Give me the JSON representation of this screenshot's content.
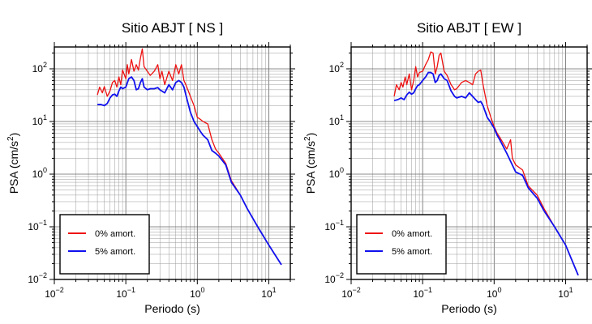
{
  "chart_data": [
    {
      "type": "line",
      "title": "Sitio ABJT [ NS ]",
      "xlabel": "Periodo (s)",
      "ylabel": {
        "base": "PSA (cm/s",
        "sup": "2",
        "end": ")"
      },
      "xscale": "log",
      "yscale": "log",
      "xlim": [
        0.01,
        20
      ],
      "ylim": [
        0.01,
        260
      ],
      "xticks": [
        {
          "base": "10",
          "exp": "−2"
        },
        {
          "base": "10",
          "exp": "−1"
        },
        {
          "base": "10",
          "exp": "0"
        },
        {
          "base": "10",
          "exp": "1"
        }
      ],
      "yticks": [
        {
          "mant": "10",
          "exp": "−2"
        },
        {
          "mant": "10",
          "exp": "−1"
        },
        {
          "mant": "10",
          "exp": "0"
        },
        {
          "mant": "10",
          "exp": "1"
        },
        {
          "mant": "10",
          "exp": "2"
        }
      ],
      "grid": true,
      "legend_position": "bottom-left",
      "series": [
        {
          "name": "0% amort.",
          "color": "#ee1111",
          "x": [
            0.04,
            0.043,
            0.047,
            0.05,
            0.055,
            0.06,
            0.065,
            0.07,
            0.075,
            0.08,
            0.085,
            0.09,
            0.1,
            0.105,
            0.11,
            0.12,
            0.13,
            0.14,
            0.15,
            0.16,
            0.17,
            0.18,
            0.2,
            0.22,
            0.25,
            0.28,
            0.3,
            0.32,
            0.35,
            0.4,
            0.45,
            0.5,
            0.55,
            0.6,
            0.65,
            0.7,
            0.8,
            0.9,
            1.0,
            1.1,
            1.2,
            1.4,
            1.6,
            1.8,
            2.0,
            2.5,
            3.0,
            4.0,
            5.0,
            7.0,
            10.0,
            15.0
          ],
          "y": [
            32,
            45,
            35,
            46,
            30,
            38,
            55,
            60,
            45,
            70,
            50,
            95,
            65,
            120,
            80,
            150,
            90,
            120,
            95,
            160,
            240,
            110,
            90,
            75,
            90,
            120,
            65,
            90,
            50,
            90,
            60,
            120,
            80,
            120,
            60,
            48,
            30,
            20,
            12,
            11,
            10,
            9,
            4.5,
            3.0,
            2.5,
            1.6,
            0.75,
            0.4,
            0.22,
            0.1,
            0.045,
            0.019
          ]
        },
        {
          "name": "5% amort.",
          "color": "#1111ee",
          "x": [
            0.04,
            0.045,
            0.05,
            0.055,
            0.06,
            0.065,
            0.07,
            0.075,
            0.08,
            0.085,
            0.09,
            0.1,
            0.11,
            0.12,
            0.13,
            0.14,
            0.15,
            0.16,
            0.17,
            0.18,
            0.2,
            0.22,
            0.25,
            0.28,
            0.3,
            0.35,
            0.4,
            0.45,
            0.5,
            0.55,
            0.6,
            0.65,
            0.7,
            0.8,
            0.9,
            1.0,
            1.1,
            1.2,
            1.4,
            1.6,
            1.8,
            2.0,
            2.5,
            3.0,
            4.0,
            5.0,
            7.0,
            10.0,
            15.0
          ],
          "y": [
            21,
            21,
            20,
            22,
            28,
            32,
            33,
            30,
            38,
            45,
            42,
            45,
            65,
            70,
            60,
            40,
            42,
            55,
            65,
            45,
            40,
            42,
            42,
            44,
            40,
            35,
            50,
            40,
            55,
            60,
            55,
            45,
            30,
            15,
            10,
            8,
            6.5,
            5.5,
            4.5,
            2.8,
            2.5,
            2.2,
            1.5,
            0.7,
            0.4,
            0.22,
            0.1,
            0.045,
            0.019
          ]
        }
      ]
    },
    {
      "type": "line",
      "title": "Sitio ABJT [ EW ]",
      "xlabel": "Periodo (s)",
      "ylabel": {
        "base": "PSA (cm/s",
        "sup": "2",
        "end": ")"
      },
      "xscale": "log",
      "yscale": "log",
      "xlim": [
        0.01,
        20
      ],
      "ylim": [
        0.01,
        260
      ],
      "xticks": [
        {
          "base": "10",
          "exp": "−2"
        },
        {
          "base": "10",
          "exp": "−1"
        },
        {
          "base": "10",
          "exp": "0"
        },
        {
          "base": "10",
          "exp": "1"
        }
      ],
      "yticks": [
        {
          "mant": "10",
          "exp": "−2"
        },
        {
          "mant": "10",
          "exp": "−1"
        },
        {
          "mant": "10",
          "exp": "0"
        },
        {
          "mant": "10",
          "exp": "1"
        },
        {
          "mant": "10",
          "exp": "2"
        }
      ],
      "grid": true,
      "legend_position": "bottom-left",
      "series": [
        {
          "name": "0% amort.",
          "color": "#ee1111",
          "x": [
            0.04,
            0.043,
            0.047,
            0.05,
            0.053,
            0.057,
            0.06,
            0.065,
            0.07,
            0.075,
            0.08,
            0.085,
            0.09,
            0.1,
            0.11,
            0.12,
            0.13,
            0.14,
            0.15,
            0.16,
            0.17,
            0.18,
            0.2,
            0.22,
            0.25,
            0.28,
            0.3,
            0.35,
            0.4,
            0.45,
            0.5,
            0.55,
            0.6,
            0.65,
            0.7,
            0.8,
            0.9,
            1.0,
            1.1,
            1.2,
            1.5,
            1.7,
            1.8,
            2.0,
            2.5,
            3.0,
            4.0,
            5.0,
            7.0,
            10.0,
            15.0
          ],
          "y": [
            30,
            50,
            40,
            55,
            45,
            70,
            50,
            80,
            40,
            60,
            110,
            70,
            85,
            90,
            120,
            150,
            210,
            200,
            80,
            110,
            180,
            200,
            90,
            75,
            50,
            40,
            42,
            55,
            60,
            55,
            50,
            80,
            90,
            95,
            50,
            20,
            12,
            8.0,
            6.0,
            5.0,
            3.0,
            4.5,
            2.0,
            1.5,
            1.2,
            0.6,
            0.4,
            0.22,
            0.1,
            0.045,
            0.012
          ]
        },
        {
          "name": "5% amort.",
          "color": "#1111ee",
          "x": [
            0.04,
            0.045,
            0.05,
            0.055,
            0.06,
            0.065,
            0.07,
            0.075,
            0.08,
            0.085,
            0.09,
            0.1,
            0.11,
            0.12,
            0.13,
            0.14,
            0.15,
            0.16,
            0.17,
            0.18,
            0.2,
            0.22,
            0.25,
            0.28,
            0.3,
            0.35,
            0.4,
            0.45,
            0.5,
            0.55,
            0.6,
            0.65,
            0.7,
            0.8,
            0.9,
            1.0,
            1.1,
            1.2,
            1.5,
            2.0,
            2.5,
            3.0,
            4.0,
            5.0,
            7.0,
            10.0,
            15.0
          ],
          "y": [
            25,
            26,
            28,
            26,
            32,
            36,
            33,
            35,
            42,
            48,
            50,
            60,
            70,
            85,
            85,
            80,
            55,
            60,
            75,
            80,
            65,
            60,
            38,
            30,
            28,
            30,
            28,
            35,
            30,
            26,
            23,
            24,
            20,
            12,
            9.5,
            7.5,
            5.5,
            4.5,
            2.5,
            1.1,
            0.95,
            0.55,
            0.35,
            0.2,
            0.1,
            0.045,
            0.012
          ]
        }
      ]
    }
  ]
}
